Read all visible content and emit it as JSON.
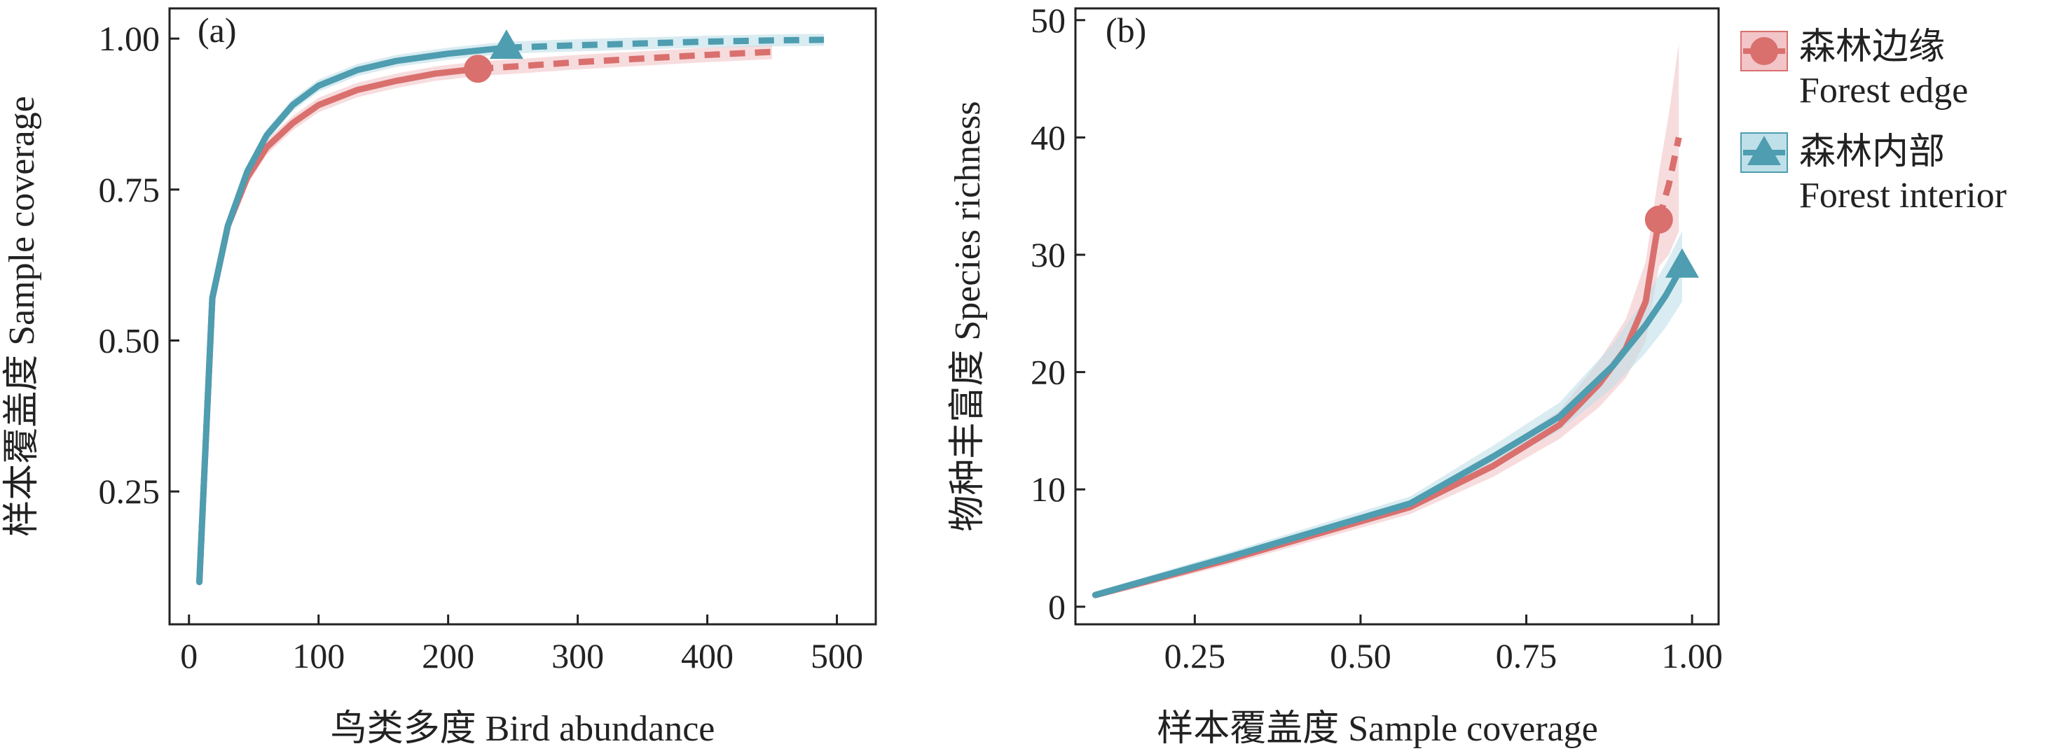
{
  "colors": {
    "forest_edge": "#d9706e",
    "forest_edge_band": "#f2c5c8",
    "forest_interior": "#4e9db0",
    "forest_interior_band": "#bfe0e8"
  },
  "legend": [
    {
      "key": "forest_edge",
      "marker": "circle",
      "label_zh": "森林边缘",
      "label_en": "Forest edge"
    },
    {
      "key": "forest_interior",
      "marker": "triangle",
      "label_zh": "森林内部",
      "label_en": "Forest interior"
    }
  ],
  "chart_data": [
    {
      "type": "line",
      "panel_label": "(a)",
      "xlabel": "鸟类多度 Bird abundance",
      "ylabel": "样本覆盖度 Sample coverage",
      "xlim": [
        -15,
        530
      ],
      "ylim": [
        0.03,
        1.05
      ],
      "xticks": [
        0,
        100,
        200,
        300,
        400,
        500
      ],
      "xtick_labels": [
        "0",
        "100",
        "200",
        "300",
        "400",
        "500"
      ],
      "yticks": [
        0.25,
        0.5,
        0.75,
        1.0
      ],
      "ytick_labels": [
        "0.25",
        "0.50",
        "0.75",
        "1.00"
      ],
      "series": [
        {
          "key": "forest_edge",
          "interpolated": [
            [
              8,
              0.1
            ],
            [
              18,
              0.57
            ],
            [
              30,
              0.69
            ],
            [
              45,
              0.77
            ],
            [
              60,
              0.82
            ],
            [
              80,
              0.86
            ],
            [
              100,
              0.89
            ],
            [
              130,
              0.915
            ],
            [
              160,
              0.93
            ],
            [
              190,
              0.942
            ],
            [
              223,
              0.95
            ]
          ],
          "extrapolated": [
            [
              223,
              0.95
            ],
            [
              260,
              0.955
            ],
            [
              300,
              0.961
            ],
            [
              350,
              0.967
            ],
            [
              400,
              0.973
            ],
            [
              450,
              0.978
            ]
          ],
          "observed": [
            223,
            0.95
          ],
          "band": 0.012
        },
        {
          "key": "forest_interior",
          "interpolated": [
            [
              8,
              0.1
            ],
            [
              18,
              0.57
            ],
            [
              30,
              0.69
            ],
            [
              45,
              0.78
            ],
            [
              60,
              0.84
            ],
            [
              80,
              0.89
            ],
            [
              100,
              0.922
            ],
            [
              130,
              0.948
            ],
            [
              160,
              0.963
            ],
            [
              200,
              0.975
            ],
            [
              245,
              0.985
            ]
          ],
          "extrapolated": [
            [
              245,
              0.985
            ],
            [
              300,
              0.989
            ],
            [
              350,
              0.992
            ],
            [
              400,
              0.995
            ],
            [
              450,
              0.997
            ],
            [
              490,
              0.998
            ]
          ],
          "observed": [
            245,
            0.985
          ],
          "band": 0.01
        }
      ]
    },
    {
      "type": "line",
      "panel_label": "(b)",
      "xlabel": "样本覆盖度 Sample coverage",
      "ylabel": "物种丰富度 Species richness",
      "xlim": [
        0.07,
        1.04
      ],
      "ylim": [
        -1.5,
        51
      ],
      "xticks": [
        0.25,
        0.5,
        0.75,
        1.0
      ],
      "xtick_labels": [
        "0.25",
        "0.50",
        "0.75",
        "1.00"
      ],
      "yticks": [
        0,
        10,
        20,
        30,
        40,
        50
      ],
      "ytick_labels": [
        "0",
        "10",
        "20",
        "30",
        "40",
        "50"
      ],
      "series": [
        {
          "key": "forest_edge",
          "interpolated": [
            [
              0.1,
              1
            ],
            [
              0.3,
              4
            ],
            [
              0.575,
              8.5
            ],
            [
              0.7,
              12
            ],
            [
              0.8,
              15.5
            ],
            [
              0.86,
              19
            ],
            [
              0.9,
              22
            ],
            [
              0.93,
              26
            ],
            [
              0.95,
              33
            ]
          ],
          "extrapolated": [
            [
              0.95,
              33
            ],
            [
              0.965,
              36
            ],
            [
              0.98,
              40
            ]
          ],
          "observed": [
            0.95,
            33
          ],
          "band_points": [
            [
              0.1,
              0.3
            ],
            [
              0.575,
              0.6
            ],
            [
              0.8,
              1.2
            ],
            [
              0.9,
              2.5
            ],
            [
              0.95,
              4
            ],
            [
              0.98,
              8
            ]
          ]
        },
        {
          "key": "forest_interior",
          "interpolated": [
            [
              0.1,
              1
            ],
            [
              0.3,
              4.2
            ],
            [
              0.575,
              8.8
            ],
            [
              0.7,
              12.8
            ],
            [
              0.8,
              16.2
            ],
            [
              0.88,
              20.5
            ],
            [
              0.93,
              24
            ],
            [
              0.96,
              26.5
            ],
            [
              0.985,
              29
            ]
          ],
          "extrapolated": [],
          "observed": [
            0.985,
            29
          ],
          "band_points": [
            [
              0.1,
              0.3
            ],
            [
              0.575,
              0.6
            ],
            [
              0.8,
              1.2
            ],
            [
              0.9,
              2
            ],
            [
              0.985,
              3
            ]
          ]
        }
      ]
    }
  ]
}
